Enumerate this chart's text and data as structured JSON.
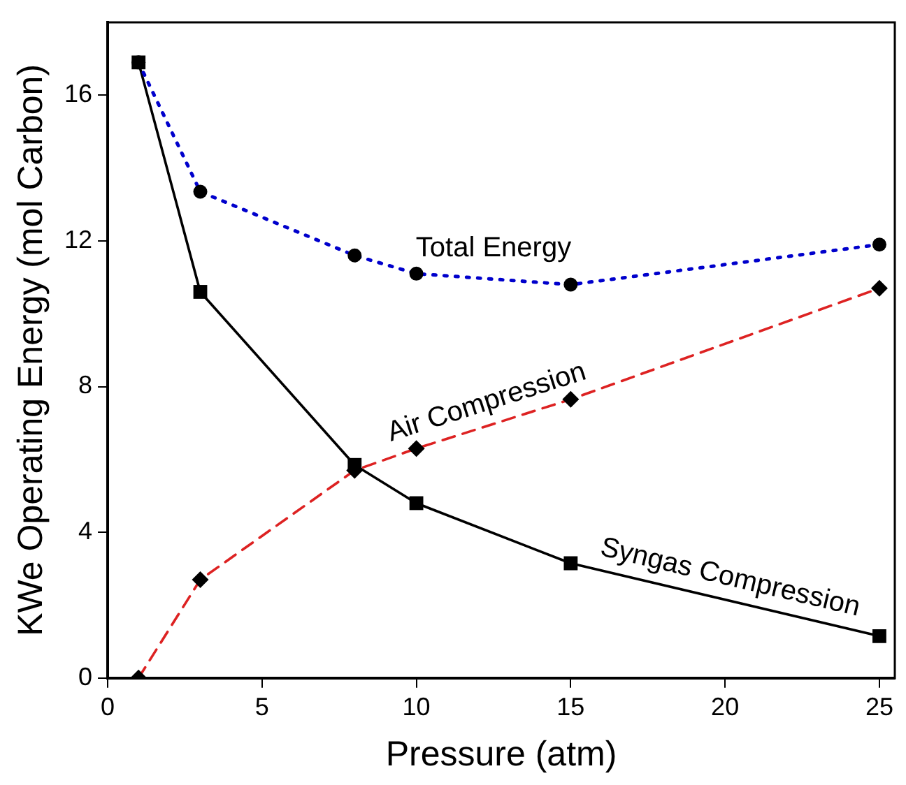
{
  "chart_data": {
    "type": "line",
    "xlabel": "Pressure (atm)",
    "ylabel": "KWe Operating Energy (mol Carbon)",
    "x": [
      1,
      3,
      8,
      10,
      15,
      25
    ],
    "xlim": [
      0,
      25.5
    ],
    "xticks": [
      0,
      5,
      10,
      15,
      20,
      25
    ],
    "ylim": [
      0,
      18
    ],
    "yticks": [
      0,
      4,
      8,
      12,
      16
    ],
    "grid": false,
    "legend": false,
    "series": [
      {
        "name": "Total Energy",
        "color": "#0000cc",
        "marker": "circle",
        "line_style": "dotted",
        "values": [
          16.9,
          13.35,
          11.6,
          11.1,
          10.8,
          11.9
        ]
      },
      {
        "name": "Air Compression",
        "color": "#dd2222",
        "marker": "diamond",
        "line_style": "dashed",
        "values": [
          0,
          2.7,
          5.7,
          6.3,
          7.65,
          10.7
        ]
      },
      {
        "name": "Syngas Compression",
        "color": "#000000",
        "marker": "square",
        "line_style": "solid",
        "values": [
          16.9,
          10.6,
          5.85,
          4.8,
          3.15,
          1.15
        ]
      }
    ]
  }
}
